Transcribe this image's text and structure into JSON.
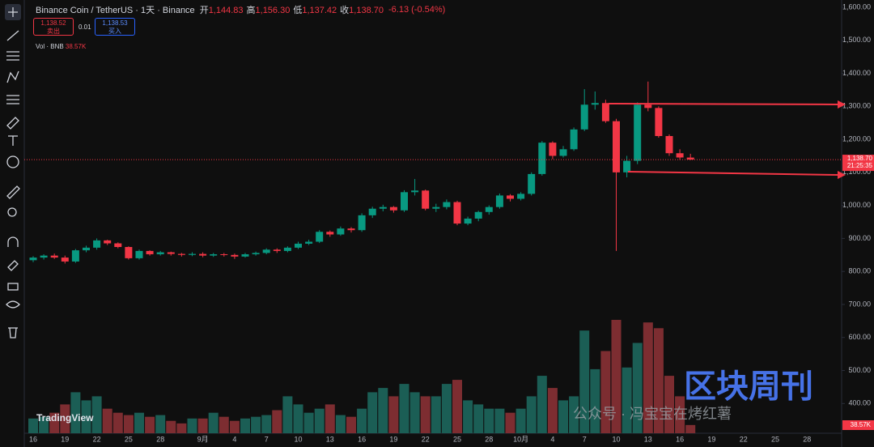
{
  "header": {
    "symbol": "Binance Coin / TetherUS · 1天 · Binance",
    "ohlc": [
      {
        "label": "开",
        "value": "1,144.83"
      },
      {
        "label": "高",
        "value": "1,156.30"
      },
      {
        "label": "低",
        "value": "1,137.42"
      },
      {
        "label": "收",
        "value": "1,138.70"
      }
    ],
    "change": "-6.13 (-0.54%)"
  },
  "trade": {
    "sell_price": "1,138.52",
    "sell": "卖出",
    "spread": "0.01",
    "buy_price": "1,138.53",
    "buy": "买入"
  },
  "volume_label": {
    "name": "Vol · BNB",
    "value": "38.57K"
  },
  "watermarks": {
    "brand": "TradingView",
    "wechat": "公众号 · 冯宝宝在烤红薯",
    "logo": "区块周刊"
  },
  "chart_data": {
    "type": "candlestick",
    "categories": [
      "16",
      null,
      null,
      "19",
      null,
      null,
      "22",
      null,
      null,
      "25",
      null,
      null,
      "28",
      null,
      null,
      null,
      "9月",
      null,
      null,
      "4",
      null,
      null,
      "7",
      null,
      null,
      "10",
      null,
      null,
      "13",
      null,
      null,
      "16",
      null,
      null,
      "19",
      null,
      null,
      "22",
      null,
      null,
      "25",
      null,
      null,
      "28",
      null,
      null,
      "10月",
      null,
      null,
      "4",
      null,
      null,
      "7",
      null,
      null,
      "10",
      null,
      null,
      "13",
      null,
      null,
      "16",
      null
    ],
    "future_categories": [
      "19",
      "22",
      "25",
      "28"
    ],
    "open": [
      834,
      842,
      848,
      842,
      830,
      864,
      872,
      894,
      885,
      874,
      840,
      862,
      852,
      858,
      853,
      850,
      853,
      848,
      852,
      850,
      845,
      852,
      856,
      866,
      862,
      872,
      884,
      890,
      920,
      912,
      930,
      925,
      970,
      990,
      995,
      985,
      1040,
      1045,
      990,
      995,
      1010,
      945,
      960,
      980,
      995,
      1030,
      1020,
      1035,
      1095,
      1190,
      1150,
      1170,
      1230,
      1305,
      1310,
      1255,
      1100,
      1135,
      1305,
      1295,
      1210,
      1158,
      1144.83
    ],
    "high": [
      846,
      852,
      854,
      848,
      868,
      878,
      900,
      896,
      888,
      876,
      866,
      864,
      862,
      860,
      856,
      858,
      858,
      856,
      856,
      854,
      856,
      860,
      870,
      870,
      876,
      890,
      896,
      925,
      924,
      936,
      934,
      976,
      996,
      1002,
      998,
      1046,
      1080,
      1048,
      1005,
      1018,
      1014,
      966,
      984,
      1000,
      1036,
      1034,
      1040,
      1100,
      1195,
      1194,
      1180,
      1236,
      1352,
      1345,
      1320,
      1262,
      1150,
      1312,
      1375,
      1300,
      1215,
      1170,
      1156.3
    ],
    "low": [
      828,
      836,
      838,
      824,
      826,
      858,
      866,
      880,
      870,
      836,
      836,
      848,
      848,
      848,
      845,
      846,
      843,
      844,
      845,
      838,
      842,
      848,
      852,
      856,
      858,
      868,
      880,
      886,
      905,
      908,
      918,
      920,
      962,
      982,
      978,
      980,
      1030,
      985,
      980,
      988,
      940,
      940,
      952,
      972,
      990,
      1012,
      1015,
      1030,
      1090,
      1140,
      1145,
      1165,
      1225,
      1290,
      1250,
      862,
      1085,
      1125,
      1285,
      1205,
      1150,
      1138,
      1137.42
    ],
    "close": [
      842,
      848,
      842,
      830,
      864,
      872,
      894,
      885,
      874,
      840,
      862,
      852,
      858,
      853,
      850,
      853,
      848,
      852,
      850,
      845,
      852,
      856,
      866,
      862,
      872,
      884,
      890,
      920,
      912,
      930,
      925,
      970,
      990,
      995,
      985,
      1040,
      1045,
      990,
      995,
      1010,
      945,
      960,
      980,
      995,
      1030,
      1020,
      1035,
      1095,
      1190,
      1150,
      1170,
      1230,
      1305,
      1310,
      1255,
      1100,
      1135,
      1305,
      1295,
      1210,
      1158,
      1145,
      1138.7
    ],
    "volume": [
      69,
      77,
      96,
      135,
      192,
      154,
      173,
      115,
      96,
      85,
      96,
      77,
      85,
      58,
      46,
      69,
      69,
      96,
      77,
      58,
      69,
      77,
      85,
      108,
      173,
      135,
      96,
      115,
      135,
      85,
      77,
      115,
      192,
      212,
      173,
      231,
      192,
      173,
      173,
      231,
      250,
      154,
      135,
      115,
      115,
      96,
      115,
      173,
      269,
      212,
      154,
      173,
      481,
      300,
      385,
      531,
      308,
      423,
      519,
      492,
      269,
      173,
      38.57
    ],
    "up_color": "#089981",
    "down_color": "#f23645",
    "volume_up_color": "#1b5e55",
    "volume_down_color": "#7d2d31",
    "ylim": [
      310,
      1622
    ],
    "yticks": [
      {
        "value": 400,
        "label": "400.00"
      },
      {
        "value": 500,
        "label": "500.00"
      },
      {
        "value": 600,
        "label": "600.00"
      },
      {
        "value": 700,
        "label": "700.00"
      },
      {
        "value": 800,
        "label": "800.00"
      },
      {
        "value": 900,
        "label": "900.00"
      },
      {
        "value": 1000,
        "label": "1,000.00"
      },
      {
        "value": 1100,
        "label": "1,100.00"
      },
      {
        "value": 1200,
        "label": "1,200.00"
      },
      {
        "value": 1300,
        "label": "1,300.00"
      },
      {
        "value": 1400,
        "label": "1,400.00"
      },
      {
        "value": 1500,
        "label": "1,500.00"
      },
      {
        "value": 1600,
        "label": "1,600.00"
      }
    ],
    "last_price": {
      "value": 1138.7,
      "label": "1,138.70",
      "countdown": "21:25:35"
    },
    "grid": false
  }
}
